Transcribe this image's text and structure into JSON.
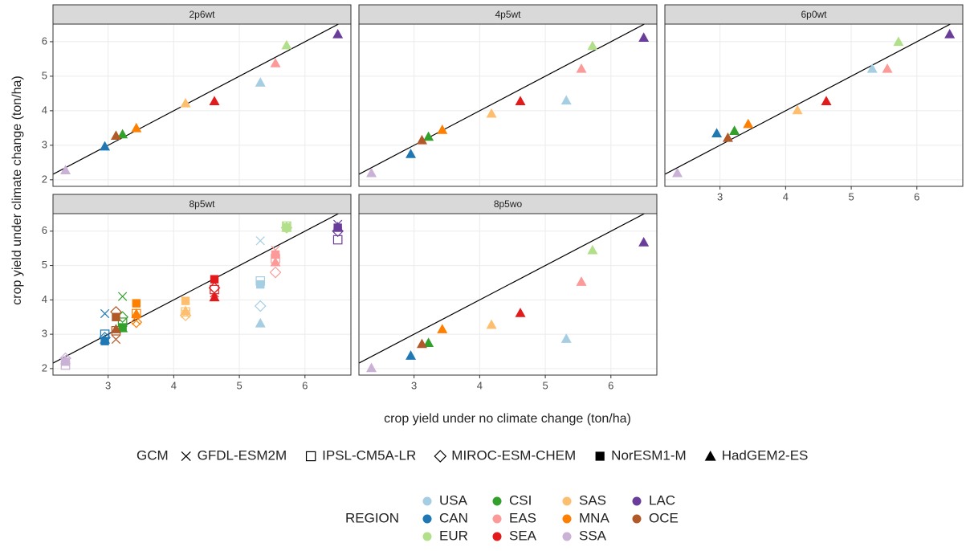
{
  "chart_data": {
    "type": "scatter",
    "xlabel": "crop yield under no climate change (ton/ha)",
    "ylabel": "crop yield under climate change (ton/ha)",
    "xlim": [
      2.16,
      6.7
    ],
    "ylim": [
      1.81,
      6.51
    ],
    "xticks": [
      3,
      4,
      5,
      6
    ],
    "yticks": [
      2,
      3,
      4,
      5,
      6
    ],
    "grid": true,
    "reference_line": {
      "slope": 1,
      "intercept": 0
    },
    "gcm_legend": {
      "title": "GCM",
      "entries": [
        {
          "name": "GFDL-ESM2M",
          "shape": "x"
        },
        {
          "name": "IPSL-CM5A-LR",
          "shape": "open-square"
        },
        {
          "name": "MIROC-ESM-CHEM",
          "shape": "open-diamond"
        },
        {
          "name": "NorESM1-M",
          "shape": "square"
        },
        {
          "name": "HadGEM2-ES",
          "shape": "triangle"
        }
      ]
    },
    "region_legend": {
      "title": "REGION",
      "entries": [
        {
          "name": "USA",
          "color": "#a6cee3"
        },
        {
          "name": "CAN",
          "color": "#1f78b4"
        },
        {
          "name": "EUR",
          "color": "#b2df8a"
        },
        {
          "name": "CSI",
          "color": "#33a02c"
        },
        {
          "name": "EAS",
          "color": "#fb9a99"
        },
        {
          "name": "SEA",
          "color": "#e31a1c"
        },
        {
          "name": "SAS",
          "color": "#fdbf6f"
        },
        {
          "name": "MNA",
          "color": "#ff7f00"
        },
        {
          "name": "SSA",
          "color": "#cab2d6"
        },
        {
          "name": "LAC",
          "color": "#6a3d9a"
        },
        {
          "name": "OCE",
          "color": "#b15928"
        }
      ]
    },
    "x": [
      5.32,
      2.95,
      5.72,
      3.22,
      5.55,
      4.62,
      4.18,
      3.43,
      2.35,
      6.5,
      3.12
    ],
    "facets": [
      {
        "title": "2p6wt",
        "series": [
          {
            "name": "HadGEM2-ES",
            "values": [
              4.82,
              2.97,
              5.9,
              3.32,
              5.38,
              4.28,
              4.22,
              3.5,
              2.28,
              6.22,
              3.28
            ]
          }
        ]
      },
      {
        "title": "4p5wt",
        "series": [
          {
            "name": "HadGEM2-ES",
            "values": [
              4.3,
              2.75,
              5.88,
              3.25,
              5.22,
              4.28,
              3.92,
              3.45,
              2.2,
              6.12,
              3.15
            ]
          }
        ]
      },
      {
        "title": "6p0wt",
        "series": [
          {
            "name": "HadGEM2-ES",
            "values": [
              5.22,
              3.35,
              6.0,
              3.42,
              5.22,
              4.28,
              4.02,
              3.62,
              2.2,
              6.22,
              3.22
            ]
          }
        ]
      },
      {
        "title": "8p5wt",
        "series": [
          {
            "name": "GFDL-ESM2M",
            "values": [
              5.72,
              3.6,
              6.15,
              4.1,
              5.45,
              4.2,
              3.6,
              3.4,
              2.2,
              6.2,
              2.85
            ]
          },
          {
            "name": "IPSL-CM5A-LR",
            "values": [
              4.55,
              3.0,
              6.15,
              3.35,
              5.2,
              4.3,
              3.65,
              3.6,
              2.1,
              5.75,
              3.1
            ]
          },
          {
            "name": "MIROC-ESM-CHEM",
            "values": [
              3.82,
              2.9,
              6.1,
              3.5,
              4.8,
              4.35,
              3.55,
              3.35,
              2.3,
              6.0,
              3.65
            ]
          },
          {
            "name": "NorESM1-M",
            "values": [
              4.45,
              2.8,
              6.1,
              3.2,
              5.32,
              4.6,
              3.97,
              3.9,
              2.2,
              6.1,
              3.5
            ]
          },
          {
            "name": "HadGEM2-ES",
            "values": [
              3.32,
              2.85,
              6.1,
              3.18,
              5.1,
              4.08,
              3.68,
              3.6,
              2.25,
              6.12,
              3.15
            ]
          }
        ]
      },
      {
        "title": "8p5wo",
        "series": [
          {
            "name": "HadGEM2-ES",
            "values": [
              2.87,
              2.38,
              5.45,
              2.75,
              4.53,
              3.62,
              3.28,
              3.15,
              2.02,
              5.68,
              2.72
            ]
          }
        ]
      }
    ]
  }
}
